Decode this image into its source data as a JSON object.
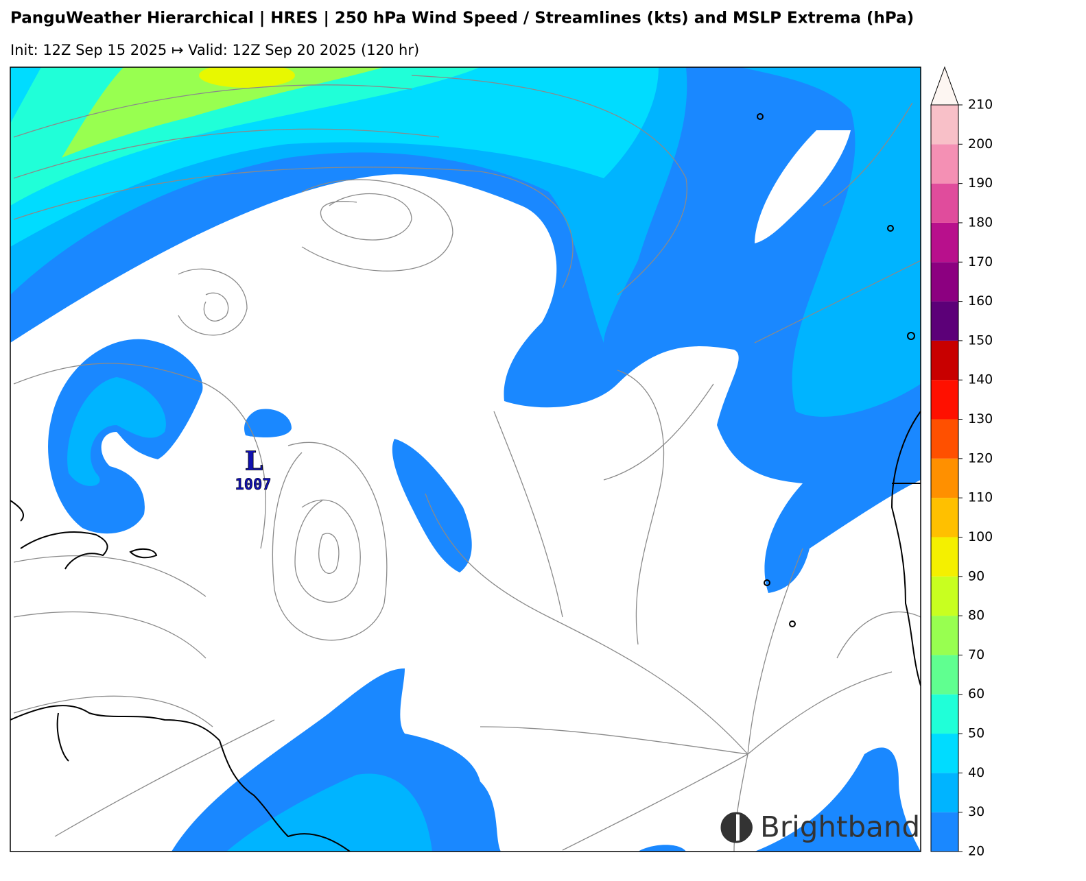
{
  "header": {
    "title": "PanguWeather Hierarchical | HRES | 250 hPa Wind Speed / Streamlines (kts) and MSLP Extrema (hPa)",
    "subtitle": "Init: 12Z Sep 15 2025 ↦ Valid: 12Z Sep 20 2025 (120 hr)"
  },
  "map": {
    "pressure_extrema": [
      {
        "label": "L",
        "value": 1007
      }
    ],
    "colorbar": {
      "lim": [
        20,
        210
      ],
      "ticks": [
        20,
        30,
        40,
        50,
        60,
        70,
        80,
        90,
        100,
        110,
        120,
        130,
        140,
        150,
        160,
        170,
        180,
        190,
        200,
        210
      ],
      "colors": [
        "#1a88ff",
        "#00b4ff",
        "#00dcff",
        "#20ffd8",
        "#60ff90",
        "#98ff50",
        "#c8ff20",
        "#f4f000",
        "#ffc000",
        "#ff9000",
        "#ff5000",
        "#ff1000",
        "#c80000",
        "#5c0078",
        "#8c0080",
        "#b8108c",
        "#e04c9c",
        "#f490b4",
        "#f8c0c8",
        "#fce4e0"
      ]
    }
  },
  "logo": "Brightband"
}
